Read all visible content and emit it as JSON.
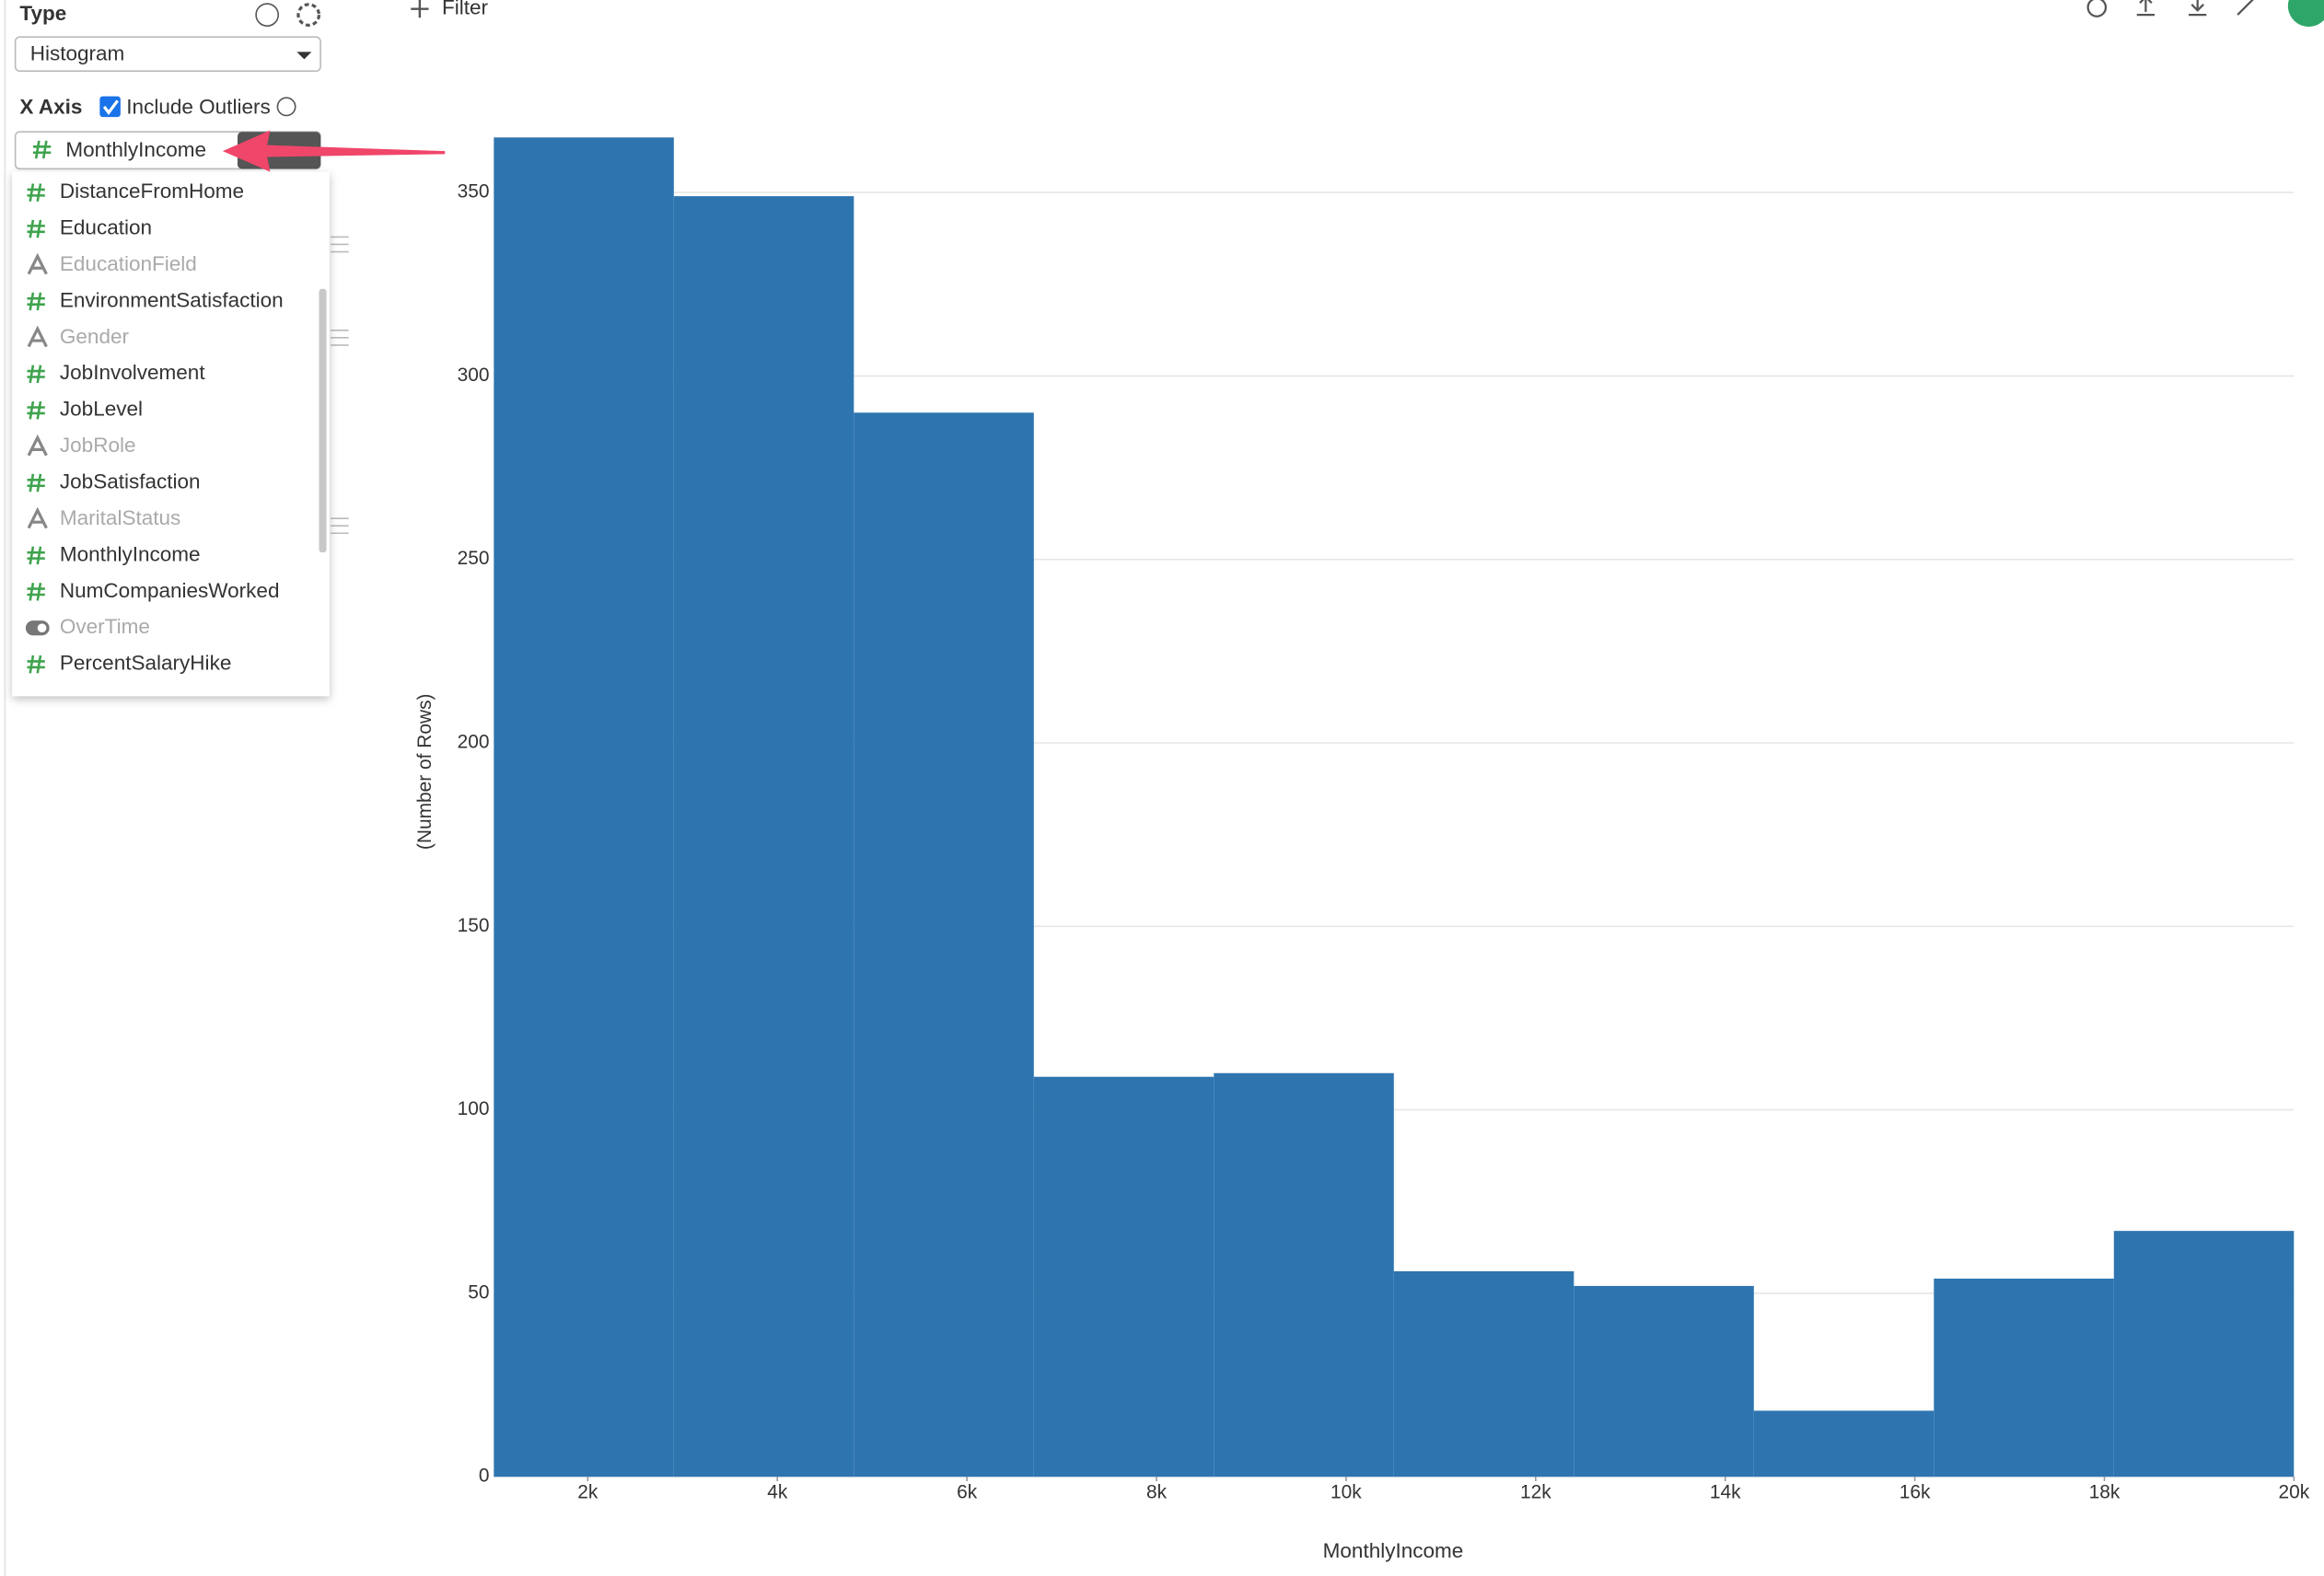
{
  "sidebar": {
    "type_label": "Type",
    "chart_type": "Histogram",
    "x_axis_label": "X Axis",
    "include_outliers": "Include Outliers",
    "selected_column": "MonthlyIncome",
    "columns": [
      {
        "name": "DistanceFromHome",
        "kind": "number"
      },
      {
        "name": "Education",
        "kind": "number"
      },
      {
        "name": "EducationField",
        "kind": "text"
      },
      {
        "name": "EnvironmentSatisfaction",
        "kind": "number"
      },
      {
        "name": "Gender",
        "kind": "text"
      },
      {
        "name": "JobInvolvement",
        "kind": "number"
      },
      {
        "name": "JobLevel",
        "kind": "number"
      },
      {
        "name": "JobRole",
        "kind": "text"
      },
      {
        "name": "JobSatisfaction",
        "kind": "number"
      },
      {
        "name": "MaritalStatus",
        "kind": "text"
      },
      {
        "name": "MonthlyIncome",
        "kind": "number"
      },
      {
        "name": "NumCompaniesWorked",
        "kind": "number"
      },
      {
        "name": "OverTime",
        "kind": "boolean"
      },
      {
        "name": "PercentSalaryHike",
        "kind": "number"
      }
    ]
  },
  "toolbar": {
    "filter": "Filter"
  },
  "chart_data": {
    "type": "histogram",
    "color": "#2e75b0",
    "grid": true,
    "x_label": "MonthlyIncome",
    "y_label": "(Number of Rows)",
    "bins": [
      1009,
      2908,
      4807,
      6706,
      8605,
      10504,
      12403,
      14302,
      16201,
      18100,
      19999
    ],
    "values": [
      365,
      349,
      290,
      109,
      110,
      56,
      52,
      18,
      54,
      67
    ],
    "xlim": [
      1009,
      19999
    ],
    "xticks": [
      {
        "value": 2000,
        "label": "2k"
      },
      {
        "value": 4000,
        "label": "4k"
      },
      {
        "value": 6000,
        "label": "6k"
      },
      {
        "value": 8000,
        "label": "8k"
      },
      {
        "value": 10000,
        "label": "10k"
      },
      {
        "value": 12000,
        "label": "12k"
      },
      {
        "value": 14000,
        "label": "14k"
      },
      {
        "value": 16000,
        "label": "16k"
      },
      {
        "value": 18000,
        "label": "18k"
      },
      {
        "value": 20000,
        "label": "20k"
      }
    ],
    "ylim": [
      0,
      365
    ],
    "yticks": [
      0,
      50,
      100,
      150,
      200,
      250,
      300,
      350
    ]
  }
}
